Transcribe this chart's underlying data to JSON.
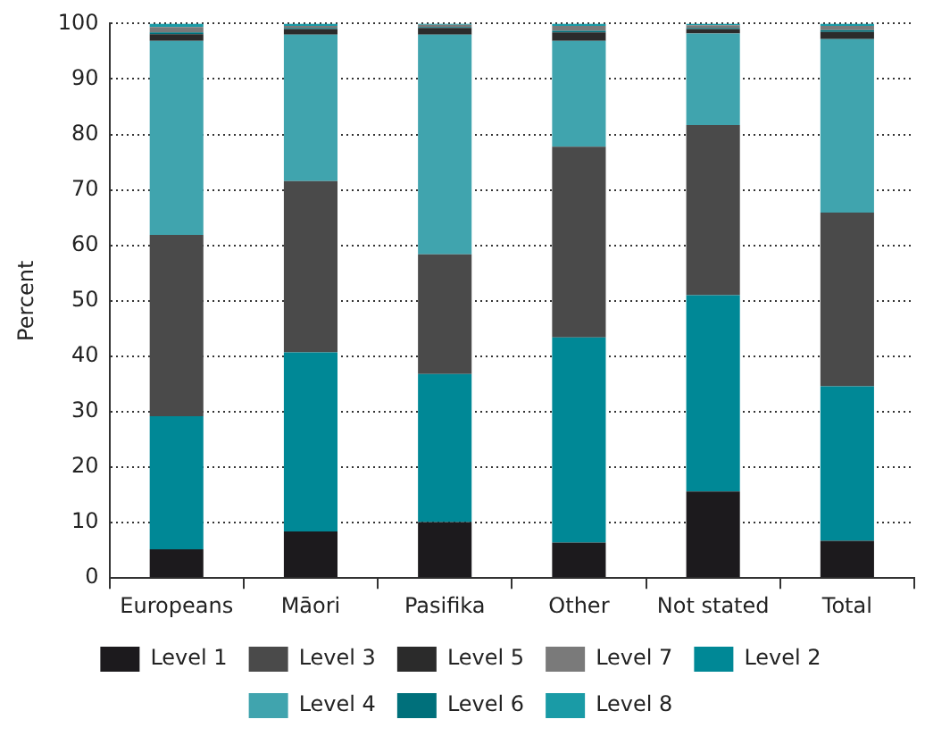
{
  "chart_data": {
    "type": "bar",
    "stacked": true,
    "ylabel": "Percent",
    "categories": [
      "Europeans",
      "Māori",
      "Pasifika",
      "Other",
      "Not stated",
      "Total"
    ],
    "series": [
      {
        "name": "Level 1",
        "color": "#1c1a1d",
        "values": [
          5.2,
          8.4,
          10.1,
          6.4,
          15.6,
          6.7
        ]
      },
      {
        "name": "Level 2",
        "color": "#008896",
        "values": [
          24.0,
          32.3,
          26.7,
          37.0,
          35.4,
          27.9
        ]
      },
      {
        "name": "Level 3",
        "color": "#4a4a4a",
        "values": [
          32.7,
          30.9,
          21.6,
          34.4,
          30.7,
          31.3
        ]
      },
      {
        "name": "Level 4",
        "color": "#40a4ae",
        "values": [
          35.0,
          26.4,
          39.6,
          19.1,
          16.5,
          31.3
        ]
      },
      {
        "name": "Level 5",
        "color": "#2b2b2b",
        "values": [
          1.2,
          1.0,
          1.2,
          1.5,
          0.8,
          1.3
        ]
      },
      {
        "name": "Level 6",
        "color": "#00707b",
        "values": [
          0.3,
          0.2,
          0.2,
          0.3,
          0.2,
          0.3
        ]
      },
      {
        "name": "Level 7",
        "color": "#7a7a7a",
        "values": [
          1.0,
          0.4,
          0.4,
          0.9,
          0.5,
          0.8
        ]
      },
      {
        "name": "Level 8",
        "color": "#1a9ba6",
        "values": [
          0.6,
          0.4,
          0.2,
          0.4,
          0.3,
          0.4
        ]
      }
    ],
    "ylim": [
      0,
      100
    ],
    "yticks": [
      0,
      10,
      20,
      30,
      40,
      50,
      60,
      70,
      80,
      90,
      100
    ],
    "grid": "y",
    "legend": "bottom"
  }
}
